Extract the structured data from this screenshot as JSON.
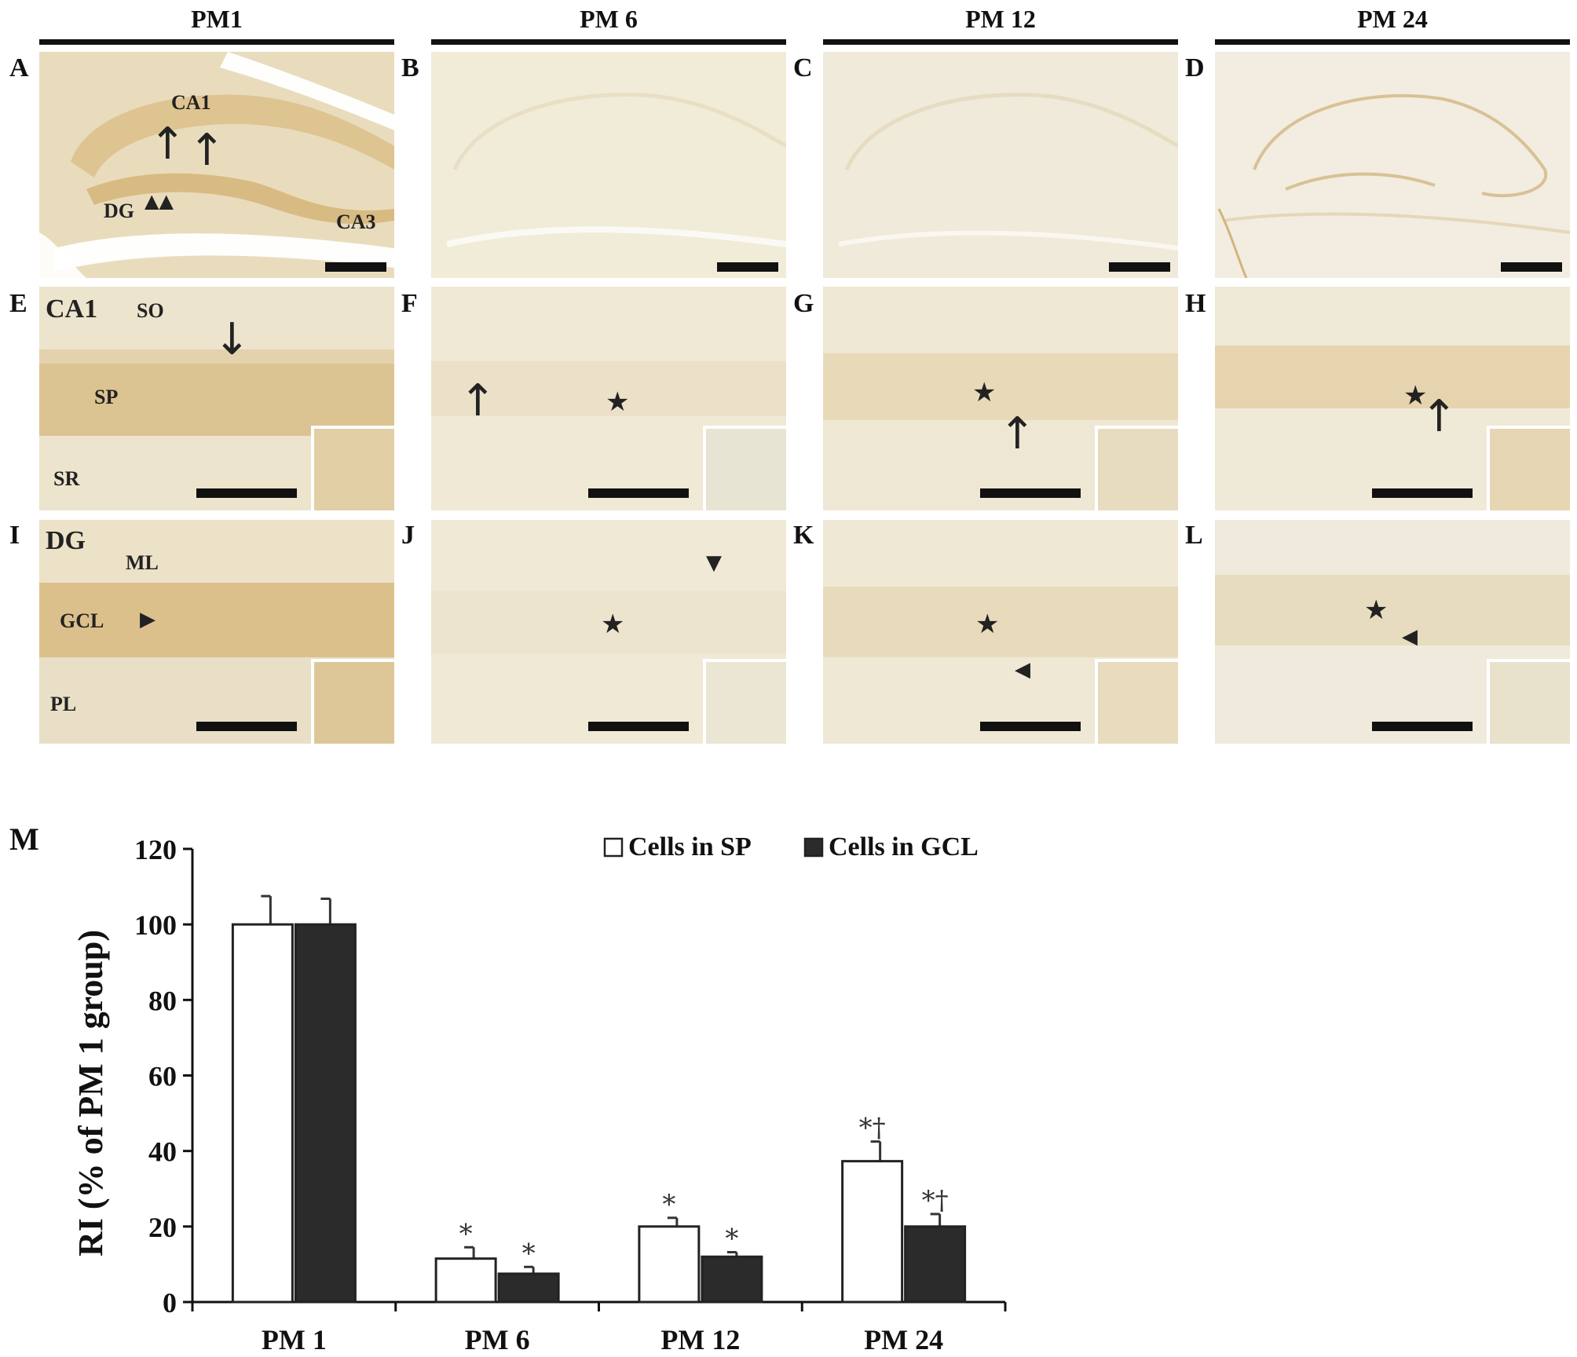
{
  "columns": [
    "PM1",
    "PM 6",
    "PM 12",
    "PM 24"
  ],
  "panel_letters": [
    "A",
    "B",
    "C",
    "D",
    "E",
    "F",
    "G",
    "H",
    "I",
    "J",
    "K",
    "L",
    "M"
  ],
  "row1_labels": {
    "ca1": "CA1",
    "dg": "DG",
    "ca3": "CA3"
  },
  "row2_labels": {
    "region": "CA1",
    "so": "SO",
    "sp": "SP",
    "sr": "SR"
  },
  "row3_labels": {
    "region": "DG",
    "ml": "ML",
    "gcl": "GCL",
    "pl": "PL"
  },
  "colors": {
    "tissue_bg": "#f1ecd6",
    "stain_strong": "#d9bd88",
    "stain_light": "#e6dcbd",
    "bar_gcl": "#2b2b2b",
    "bar_sp": "#ffffff"
  },
  "icons": {
    "arrow": "up-arrow-icon",
    "arrowhead": "triangle-arrowhead-icon",
    "star": "star-icon"
  },
  "chart_data": {
    "type": "bar",
    "panel_label": "M",
    "ylabel": "RI (% of PM 1 group)",
    "ylim": [
      0,
      120
    ],
    "yticks": [
      "0",
      "20",
      "40",
      "60",
      "80",
      "100",
      "120"
    ],
    "categories": [
      "PM 1",
      "PM 6",
      "PM 12",
      "PM 24"
    ],
    "legend_position": "top-center",
    "series": [
      {
        "name": "Cells in SP",
        "color": "#ffffff",
        "values": [
          100,
          11.5,
          20,
          37.3
        ],
        "errors": [
          7.5,
          3,
          2.3,
          5.2
        ],
        "annotations": [
          "",
          "*",
          "*",
          "*†"
        ]
      },
      {
        "name": "Cells in GCL",
        "color": "#2b2b2b",
        "values": [
          100,
          7.5,
          12,
          20
        ],
        "errors": [
          6.8,
          1.8,
          1.2,
          3.3
        ],
        "annotations": [
          "",
          "*",
          "*",
          "*†"
        ]
      }
    ]
  }
}
